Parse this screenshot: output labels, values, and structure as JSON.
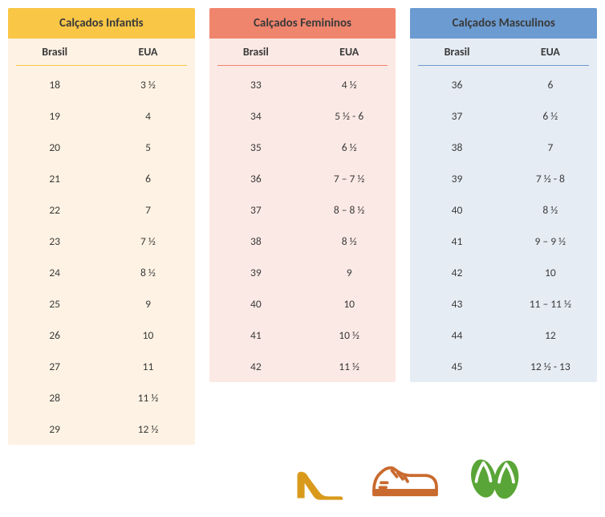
{
  "tables": {
    "infantis": {
      "title": "Calçados Infantis",
      "col1": "Brasil",
      "col2": "EUA",
      "title_bg": "#f9c646",
      "body_bg": "#fdf2e3",
      "divider_color": "#f9c646",
      "rows": [
        {
          "brasil": "18",
          "eua": "3 ½"
        },
        {
          "brasil": "19",
          "eua": "4"
        },
        {
          "brasil": "20",
          "eua": "5"
        },
        {
          "brasil": "21",
          "eua": "6"
        },
        {
          "brasil": "22",
          "eua": "7"
        },
        {
          "brasil": "23",
          "eua": "7 ½"
        },
        {
          "brasil": "24",
          "eua": "8 ½"
        },
        {
          "brasil": "25",
          "eua": "9"
        },
        {
          "brasil": "26",
          "eua": "10"
        },
        {
          "brasil": "27",
          "eua": "11"
        },
        {
          "brasil": "28",
          "eua": "11 ½"
        },
        {
          "brasil": "29",
          "eua": "12 ½"
        }
      ]
    },
    "femininos": {
      "title": "Calçados Femininos",
      "col1": "Brasil",
      "col2": "EUA",
      "title_bg": "#f0856d",
      "body_bg": "#fbe9e5",
      "divider_color": "#f0856d",
      "rows": [
        {
          "brasil": "33",
          "eua": "4 ½"
        },
        {
          "brasil": "34",
          "eua": "5 ½ - 6"
        },
        {
          "brasil": "35",
          "eua": "6 ½"
        },
        {
          "brasil": "36",
          "eua": "7 – 7 ½"
        },
        {
          "brasil": "37",
          "eua": "8 – 8 ½"
        },
        {
          "brasil": "38",
          "eua": "8 ½"
        },
        {
          "brasil": "39",
          "eua": "9"
        },
        {
          "brasil": "40",
          "eua": "10"
        },
        {
          "brasil": "41",
          "eua": "10 ½"
        },
        {
          "brasil": "42",
          "eua": "11 ½"
        }
      ]
    },
    "masculinos": {
      "title": "Calçados Masculinos",
      "col1": "Brasil",
      "col2": "EUA",
      "title_bg": "#6b9bd1",
      "body_bg": "#e6ecf4",
      "divider_color": "#6b9bd1",
      "rows": [
        {
          "brasil": "36",
          "eua": "6"
        },
        {
          "brasil": "37",
          "eua": "6 ½"
        },
        {
          "brasil": "38",
          "eua": "7"
        },
        {
          "brasil": "39",
          "eua": "7 ½ - 8"
        },
        {
          "brasil": "40",
          "eua": "8 ½"
        },
        {
          "brasil": "41",
          "eua": "9 – 9 ½"
        },
        {
          "brasil": "42",
          "eua": "10"
        },
        {
          "brasil": "43",
          "eua": "11 – 11 ½"
        },
        {
          "brasil": "44",
          "eua": "12"
        },
        {
          "brasil": "45",
          "eua": "12 ½ - 13"
        }
      ]
    }
  },
  "icons": {
    "heel_color": "#d99a1c",
    "sneaker_color": "#c96a2e",
    "flipflop_color": "#5aa537"
  }
}
